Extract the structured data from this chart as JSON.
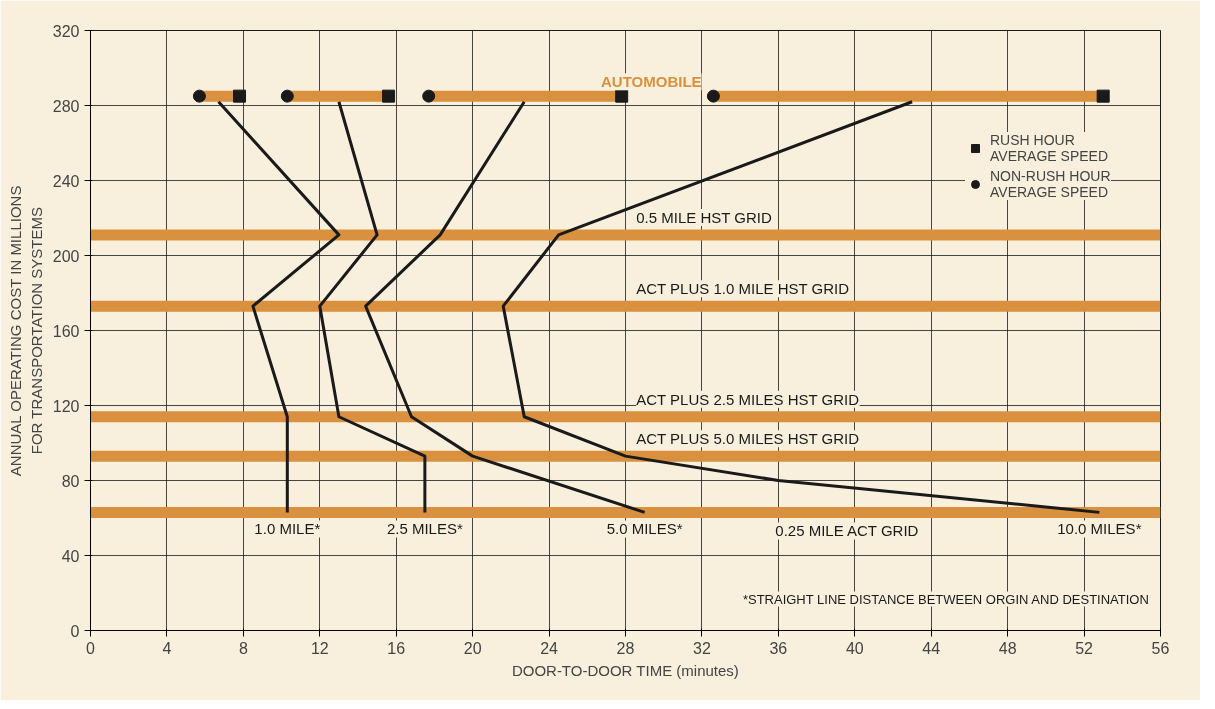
{
  "chart_data": {
    "type": "line",
    "xlabel": "DOOR-TO-DOOR TIME (minutes)",
    "ylabel": "ANNUAL OPERATING COST IN MILLIONS\nFOR TRANSPORTATION SYSTEMS",
    "xlim": [
      0,
      56
    ],
    "xticks": [
      0,
      4,
      8,
      12,
      16,
      20,
      24,
      28,
      32,
      36,
      40,
      44,
      48,
      52,
      56
    ],
    "ylim": [
      0,
      320
    ],
    "yticks": [
      0,
      40,
      80,
      120,
      160,
      200,
      240,
      280,
      320
    ],
    "grid": true,
    "legend": "top right",
    "series": [
      {
        "name": "AUTOMOBILE",
        "color": "#d9913f",
        "x": [
          5.7,
          7.8,
          null,
          10.3,
          15.6,
          null,
          17.7,
          27.8,
          null,
          32.6,
          53
        ],
        "values": [
          285,
          285,
          null,
          285,
          285,
          null,
          285,
          285,
          null,
          285,
          285
        ]
      },
      {
        "name": "1.0 MILE*",
        "color": "#1a1a1a",
        "x": [
          6.7,
          13,
          8.5,
          10.3,
          10.3,
          10.3
        ],
        "values": [
          282,
          211,
          173,
          114,
          93,
          63
        ]
      },
      {
        "name": "2.5 MILES*",
        "color": "#1a1a1a",
        "x": [
          13,
          15,
          12,
          13,
          17.5,
          17.5
        ],
        "values": [
          282,
          211,
          173,
          114,
          93,
          63
        ]
      },
      {
        "name": "5.0 MILES*",
        "color": "#1a1a1a",
        "x": [
          22.7,
          18.3,
          14.4,
          16.8,
          20,
          29
        ],
        "values": [
          282,
          211,
          173,
          114,
          93,
          63
        ]
      },
      {
        "name": "10.0 MILES*",
        "color": "#1a1a1a",
        "x": [
          43,
          24.5,
          21.6,
          22.7,
          28,
          36,
          52.8
        ],
        "values": [
          282,
          211,
          173,
          114,
          93,
          80,
          63
        ]
      },
      {
        "type": "scatter",
        "name": "RUSH HOUR AVERAGE SPEED",
        "marker": "square",
        "color": "#1a1a1a",
        "x": [
          7.8,
          15.6,
          27.8,
          53
        ],
        "values": [
          285,
          285,
          285,
          285
        ]
      },
      {
        "type": "scatter",
        "name": "NON-RUSH HOUR AVERAGE SPEED",
        "marker": "circle",
        "color": "#1a1a1a",
        "x": [
          5.7,
          10.3,
          17.7,
          32.6
        ],
        "values": [
          285,
          285,
          285,
          285
        ]
      }
    ],
    "ref_lines": [
      {
        "axis": "y",
        "value": 211,
        "label": "0.5 MILE HST GRID",
        "color": "#d9913f"
      },
      {
        "axis": "y",
        "value": 173,
        "label": "ACT PLUS 1.0 MILE HST GRID",
        "color": "#d9913f"
      },
      {
        "axis": "y",
        "value": 114,
        "label": "ACT PLUS 2.5 MILES HST GRID",
        "color": "#d9913f"
      },
      {
        "axis": "y",
        "value": 93,
        "label": "ACT PLUS 5.0 MILES HST GRID",
        "color": "#d9913f"
      },
      {
        "axis": "y",
        "value": 63,
        "label": "0.25 MILE ACT GRID",
        "color": "#d9913f"
      }
    ],
    "annotations": [
      "*STRAIGHT LINE DISTANCE BETWEEN ORGIN AND DESTINATION"
    ]
  }
}
